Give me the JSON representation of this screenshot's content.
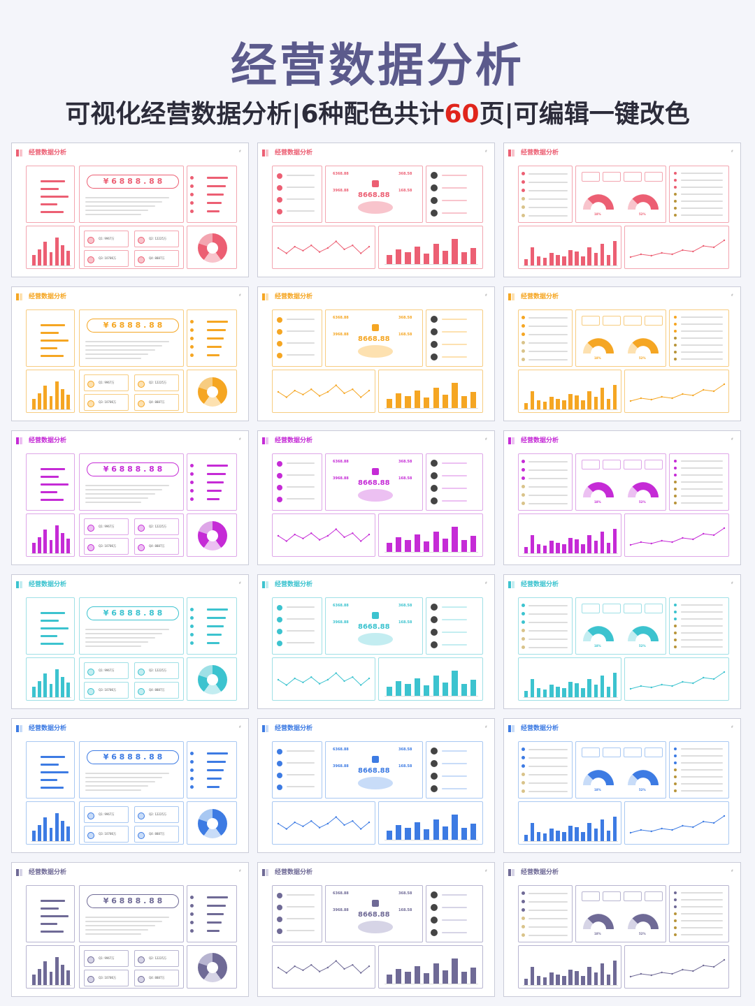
{
  "header": {
    "title": "经营数据分析",
    "subtitle_part1": "可视化经营数据分析|6种配色共计",
    "subtitle_highlight": "60",
    "subtitle_part2": "页|可编辑一键改色"
  },
  "slide_title": "经营数据分析",
  "themes": [
    {
      "name": "red",
      "primary": "#ec5f73",
      "light": "#f8c4cc",
      "border": "#f3a5b0"
    },
    {
      "name": "orange",
      "primary": "#f5a623",
      "light": "#fde1b0",
      "border": "#f7cc80"
    },
    {
      "name": "purple",
      "primary": "#c52bd6",
      "light": "#ecc0f2",
      "border": "#dea6e8"
    },
    {
      "name": "teal",
      "primary": "#3cc3cf",
      "light": "#c3edf1",
      "border": "#9fe0e6"
    },
    {
      "name": "blue",
      "primary": "#3d7be3",
      "light": "#c8dcf8",
      "border": "#a8c8f2"
    },
    {
      "name": "slate",
      "primary": "#6f6a96",
      "light": "#d6d4e6",
      "border": "#b7b4d0"
    }
  ],
  "slide1": {
    "money": "¥ 6 8 8 8 . 8 8",
    "quarters": [
      "Q1: 9967万",
      "Q2: 12225万",
      "Q3: 10786万",
      "Q4: 8887万"
    ]
  },
  "slide2": {
    "values": [
      "6368.88",
      "3968.88",
      "8668.88",
      "368.58",
      "168.58"
    ]
  },
  "slide3": {
    "gauges": [
      "18%",
      "52%"
    ]
  },
  "bars_a": [
    0.35,
    0.55,
    0.8,
    0.45,
    0.95,
    0.7,
    0.5
  ],
  "bars_b": [
    0.3,
    0.5,
    0.4,
    0.6,
    0.35,
    0.7,
    0.45,
    0.85,
    0.4,
    0.55
  ],
  "bars_c": [
    0.2,
    0.6,
    0.3,
    0.25,
    0.4,
    0.35,
    0.3,
    0.5,
    0.45,
    0.3,
    0.6,
    0.4,
    0.7,
    0.35,
    0.8
  ],
  "line_a": [
    0.5,
    0.3,
    0.55,
    0.4,
    0.6,
    0.35,
    0.5,
    0.75,
    0.45,
    0.6,
    0.3,
    0.55
  ],
  "line_b": [
    0.2,
    0.3,
    0.25,
    0.35,
    0.3,
    0.45,
    0.4,
    0.6,
    0.55,
    0.8
  ],
  "hbars": [
    0.8,
    0.6,
    0.9,
    0.55,
    0.75
  ]
}
